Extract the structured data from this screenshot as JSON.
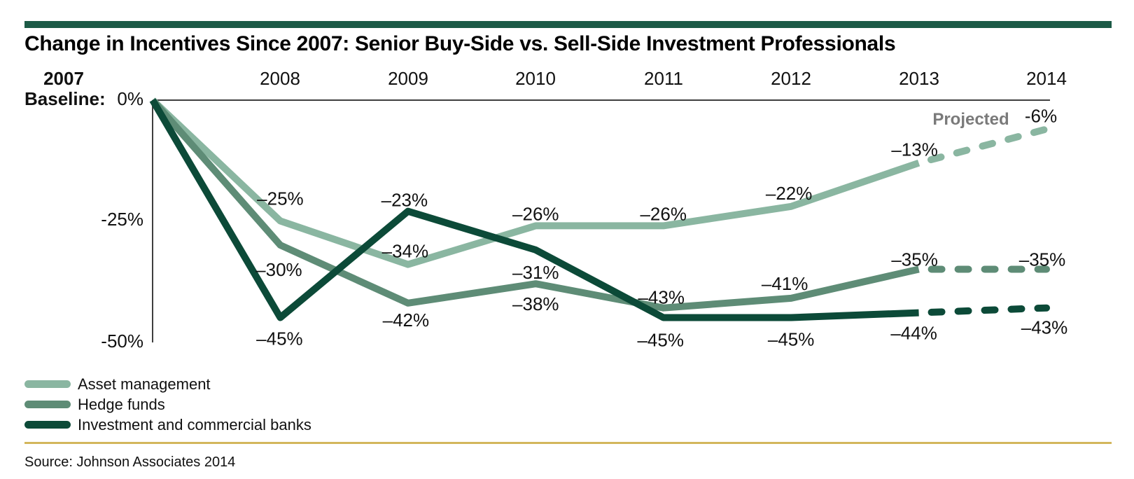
{
  "page": {
    "title": "Change in Incentives Since 2007: Senior Buy-Side vs. Sell-Side Investment Professionals",
    "source": "Source: Johnson Associates 2014"
  },
  "colors": {
    "header_bar": "#1C5A46",
    "divider_gold": "#D3B65C",
    "axis": "#3F3F3F",
    "projected_gray": "#7A7A7A",
    "asset_management": "#8AB6A1",
    "hedge_funds": "#5E8C76",
    "banks": "#0C4A38"
  },
  "chart_data": {
    "type": "line",
    "title": "Change in Incentives Since 2007: Senior Buy-Side vs. Sell-Side Investment Professionals",
    "x": [
      2007,
      2008,
      2009,
      2010,
      2011,
      2012,
      2013,
      2014
    ],
    "x_labels": [
      "2008",
      "2009",
      "2010",
      "2011",
      "2012",
      "2013",
      "2014"
    ],
    "baseline": {
      "year": "2007",
      "label": "Baseline:",
      "value": "0%"
    },
    "yticks": [
      "-25%",
      "-50%"
    ],
    "ylim": [
      -50,
      0
    ],
    "grid": "off",
    "legend_position": "bottom-left",
    "projected_label": "Projected",
    "projected_from_year": 2013,
    "series": [
      {
        "name": "Asset management",
        "color": "#8AB6A1",
        "values": [
          0,
          -25,
          -34,
          -26,
          -26,
          -22,
          -13,
          -6
        ],
        "point_labels": [
          "",
          "–25%",
          "–34%",
          "–26%",
          "–26%",
          "–22%",
          "–13%",
          "-6%"
        ]
      },
      {
        "name": "Hedge funds",
        "color": "#5E8C76",
        "values": [
          0,
          -30,
          -42,
          -38,
          -43,
          -41,
          -35,
          -35
        ],
        "point_labels": [
          "",
          "–30%",
          "–42%",
          "–38%",
          "–43%",
          "–41%",
          "–35%",
          "–35%"
        ]
      },
      {
        "name": "Investment and commercial banks",
        "color": "#0C4A38",
        "values": [
          0,
          -45,
          -23,
          -31,
          -45,
          -45,
          -44,
          -43
        ],
        "point_labels": [
          "",
          "–45%",
          "–23%",
          "–31%",
          "–45%",
          "–45%",
          "–44%",
          "–43%"
        ]
      }
    ]
  }
}
